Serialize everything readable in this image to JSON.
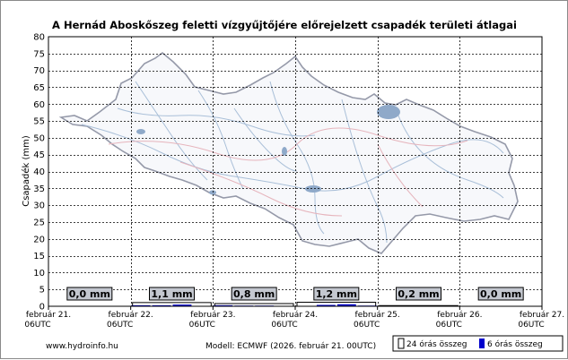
{
  "chart_data": {
    "type": "bar",
    "title": "A Hernád Aboskőszeg feletti vízgyűjtőjére előrejelzett csapadék területi átlagai",
    "ylabel": "Csapadék (mm)",
    "xlabel": "",
    "ylim": [
      0,
      80
    ],
    "yticks": [
      0,
      5,
      10,
      15,
      20,
      25,
      30,
      35,
      40,
      45,
      50,
      55,
      60,
      65,
      70,
      75,
      80
    ],
    "grid": true,
    "x_ticks": [
      {
        "date": "február 21.",
        "time": "06UTC"
      },
      {
        "date": "február 22.",
        "time": "06UTC"
      },
      {
        "date": "február 23.",
        "time": "06UTC"
      },
      {
        "date": "február 24.",
        "time": "06UTC"
      },
      {
        "date": "február 25.",
        "time": "06UTC"
      },
      {
        "date": "február 26.",
        "time": "06UTC"
      },
      {
        "date": "február 27.",
        "time": "06UTC"
      }
    ],
    "series": [
      {
        "name": "24 órás összeg",
        "values": [
          0.0,
          1.1,
          0.8,
          1.2,
          0.2,
          0.0
        ],
        "labels": [
          "0,0 mm",
          "1,1 mm",
          "0,8 mm",
          "1,2 mm",
          "0,2 mm",
          "0,0 mm"
        ],
        "color": "#ffffff"
      },
      {
        "name": "6 órás összeg",
        "values": [
          0.0,
          0.0,
          0.0,
          0.0,
          0.3,
          0.3,
          0.5,
          0.0,
          0.3,
          0.2,
          0.2,
          0.0,
          0.0,
          0.4,
          0.6,
          0.2,
          0.0,
          0.1,
          0.1,
          0.0,
          0.0,
          0.0,
          0.0,
          0.0
        ],
        "color": "#0000cc"
      }
    ],
    "legend_position": "bottom-right"
  },
  "footer": {
    "website": "www.hydroinfo.hu",
    "model": "Modell: ECMWF (2026. február 21. 00UTC)"
  },
  "legend": {
    "daily": "24 órás összeg",
    "six_hour": "6 órás összeg"
  },
  "colors": {
    "grid": "#000000",
    "map_outline": "#8a8fa0",
    "rivers": "#a9bfd8",
    "lakes": "#8fa9c9",
    "roads": "#e6b4bc",
    "bar_six_hour": "#0000cc",
    "label_box": "#c4c8d0"
  }
}
